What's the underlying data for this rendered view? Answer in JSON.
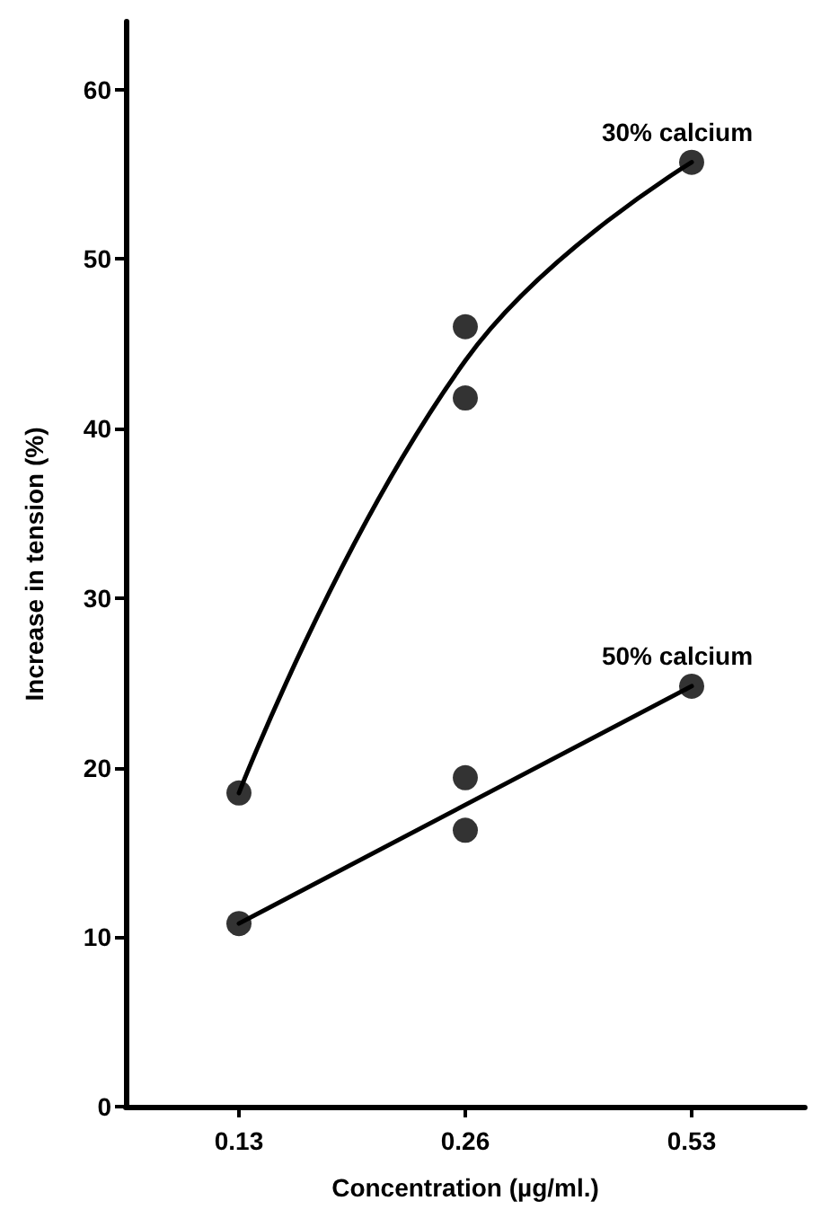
{
  "chart_data": {
    "type": "scatter",
    "xlabel": "Concentration (µg/ml.)",
    "ylabel": "Increase in tension (%)",
    "categories": [
      "0.13",
      "0.26",
      "0.53"
    ],
    "ylim": [
      0,
      64
    ],
    "yticks": [
      0,
      10,
      20,
      30,
      40,
      50,
      60
    ],
    "grid": false,
    "legend": false,
    "marker": "circle",
    "series": [
      {
        "color": "#000000",
        "x": [
          "0.13",
          "0.26",
          "0.26",
          "0.53"
        ],
        "values": [
          18.5,
          46,
          41.8,
          55.7
        ]
      },
      {
        "color": "#000000",
        "x": [
          "0.13",
          "0.26",
          "0.26",
          "0.53"
        ],
        "values": [
          10.8,
          19.4,
          16.3,
          24.8
        ]
      },
      {
        "type": "line",
        "name": "30% calcium",
        "color": "#000000",
        "marker": "none",
        "x": [
          "0.13",
          "0.26",
          "0.53"
        ],
        "values": [
          18.5,
          44,
          55.7
        ]
      },
      {
        "type": "line",
        "name": "50% calcium",
        "color": "#000000",
        "marker": "none",
        "x": [
          "0.13",
          "0.53"
        ],
        "values": [
          10.8,
          24.8
        ]
      }
    ]
  }
}
